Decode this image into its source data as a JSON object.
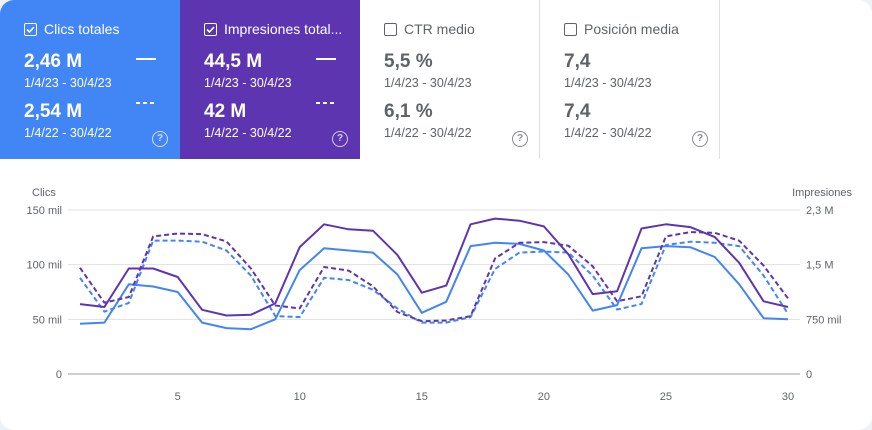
{
  "metrics": [
    {
      "key": "clicks",
      "label": "Clics totales",
      "checked": true,
      "value_current": "2,46 M",
      "range_current": "1/4/23 - 30/4/23",
      "value_previous": "2,54 M",
      "range_previous": "1/4/22 - 30/4/22",
      "color": "#4285f4"
    },
    {
      "key": "impr",
      "label": "Impresiones total...",
      "checked": true,
      "value_current": "44,5 M",
      "range_current": "1/4/23 - 30/4/23",
      "value_previous": "42 M",
      "range_previous": "1/4/22 - 30/4/22",
      "color": "#5e35b1"
    },
    {
      "key": "ctr",
      "label": "CTR medio",
      "checked": false,
      "value_current": "5,5 %",
      "range_current": "1/4/23 - 30/4/23",
      "value_previous": "6,1 %",
      "range_previous": "1/4/22 - 30/4/22",
      "color": "#ffffff"
    },
    {
      "key": "pos",
      "label": "Posición media",
      "checked": false,
      "value_current": "7,4",
      "range_current": "1/4/23 - 30/4/23",
      "value_previous": "7,4",
      "range_previous": "1/4/22 - 30/4/22",
      "color": "#ffffff"
    }
  ],
  "help_glyph": "?",
  "chart_data": {
    "type": "line",
    "ylabel_left": "Clics",
    "ylabel_right": "Impresiones",
    "left_ticks": [
      "0",
      "50 mil",
      "100 mil",
      "150 mil"
    ],
    "right_ticks": [
      "0",
      "750 mil",
      "1,5 M",
      "2,3 M"
    ],
    "x_ticks": [
      "5",
      "10",
      "15",
      "20",
      "25",
      "30"
    ],
    "x": [
      1,
      2,
      3,
      4,
      5,
      6,
      7,
      8,
      9,
      10,
      11,
      12,
      13,
      14,
      15,
      16,
      17,
      18,
      19,
      20,
      21,
      22,
      23,
      24,
      25,
      26,
      27,
      28,
      29,
      30
    ],
    "ylim_left": [
      0,
      150000
    ],
    "ylim_right": [
      0,
      2300000
    ],
    "grid": true,
    "series": [
      {
        "axis": "left",
        "style": "solid",
        "color": "#4285f4",
        "values": [
          46000,
          47000,
          82000,
          80000,
          75000,
          47000,
          42000,
          41000,
          50000,
          95000,
          115000,
          113000,
          111000,
          91000,
          56000,
          66000,
          117000,
          120000,
          119000,
          113000,
          91000,
          58000,
          63000,
          115000,
          117000,
          116000,
          107000,
          82000,
          51000,
          50000
        ]
      },
      {
        "axis": "left",
        "style": "dashed",
        "color": "#4285f4",
        "values": [
          88000,
          57000,
          65000,
          122000,
          122000,
          121000,
          113000,
          90000,
          53000,
          52000,
          88000,
          86000,
          77000,
          60000,
          47000,
          47000,
          52000,
          96000,
          111000,
          112000,
          111000,
          90000,
          59000,
          64000,
          118000,
          121000,
          120000,
          117000,
          90000,
          55000
        ]
      },
      {
        "axis": "right",
        "style": "solid",
        "color": "#5e35b1",
        "values": [
          980000,
          940000,
          1480000,
          1480000,
          1360000,
          900000,
          820000,
          830000,
          990000,
          1780000,
          2100000,
          2030000,
          2010000,
          1670000,
          1140000,
          1240000,
          2100000,
          2180000,
          2150000,
          2070000,
          1680000,
          1120000,
          1160000,
          2040000,
          2100000,
          2060000,
          1920000,
          1560000,
          1020000,
          940000
        ]
      },
      {
        "axis": "right",
        "style": "dashed",
        "color": "#5e35b1",
        "values": [
          1490000,
          1000000,
          1080000,
          1930000,
          1970000,
          1960000,
          1860000,
          1480000,
          960000,
          920000,
          1500000,
          1450000,
          1230000,
          870000,
          740000,
          750000,
          810000,
          1620000,
          1840000,
          1850000,
          1800000,
          1510000,
          1020000,
          1090000,
          1930000,
          1990000,
          1980000,
          1870000,
          1520000,
          1060000
        ]
      }
    ]
  }
}
